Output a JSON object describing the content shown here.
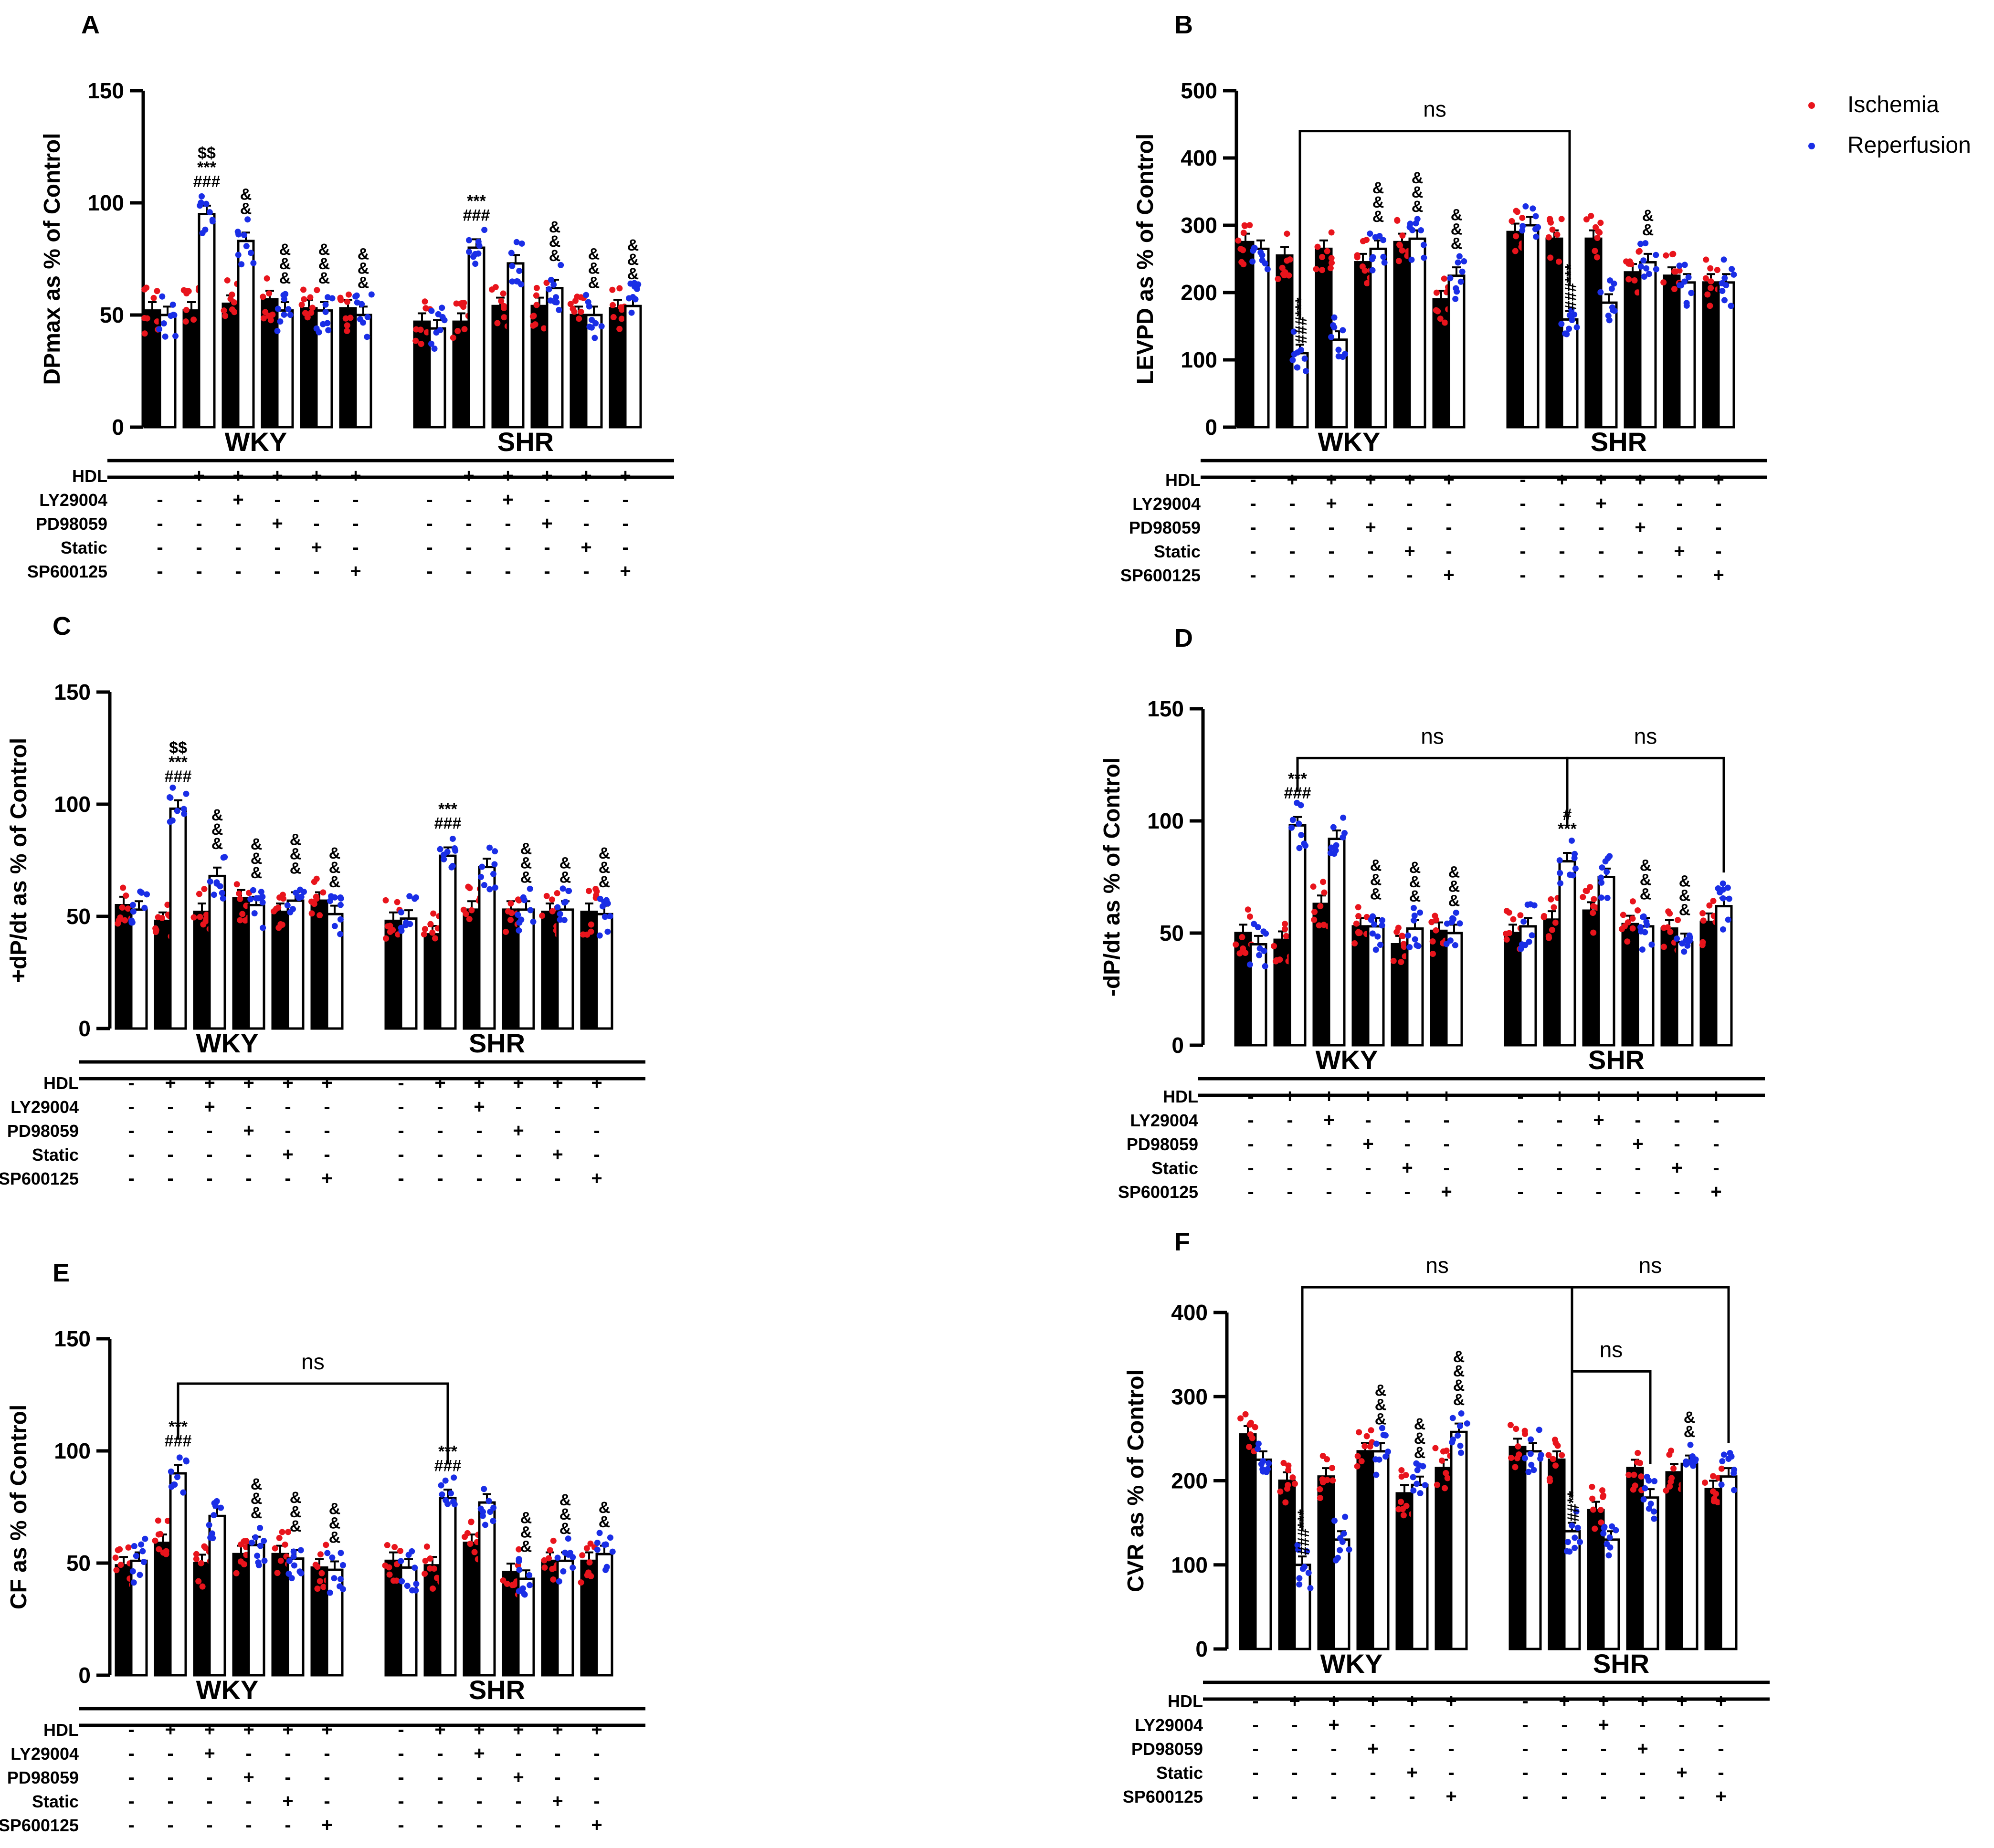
{
  "legend": [
    {
      "label": "Ischemia",
      "color": "#e8141c"
    },
    {
      "label": "Reperfusion",
      "color": "#1a2ee6"
    }
  ],
  "colors": {
    "ischemia_bar": "#000000",
    "reperfusion_bar": "#ffffff",
    "ischemia_dot": "#e8141c",
    "reperfusion_dot": "#1a2ee6"
  },
  "conditions": {
    "labels": [
      "HDL",
      "LY29004",
      "PD98059",
      "Static",
      "SP600125"
    ],
    "WKY": [
      [
        "-",
        "+",
        "+",
        "+",
        "+",
        "+"
      ],
      [
        "-",
        "-",
        "+",
        "-",
        "-",
        "-"
      ],
      [
        "-",
        "-",
        "-",
        "+",
        "-",
        "-"
      ],
      [
        "-",
        "-",
        "-",
        "-",
        "+",
        "-"
      ],
      [
        "-",
        "-",
        "-",
        "-",
        "-",
        "+"
      ]
    ],
    "SHR": [
      [
        "-",
        "+",
        "+",
        "+",
        "+",
        "+"
      ],
      [
        "-",
        "-",
        "+",
        "-",
        "-",
        "-"
      ],
      [
        "-",
        "-",
        "-",
        "+",
        "-",
        "-"
      ],
      [
        "-",
        "-",
        "-",
        "-",
        "+",
        "-"
      ],
      [
        "-",
        "-",
        "-",
        "-",
        "-",
        "+"
      ]
    ]
  },
  "chart_data": [
    {
      "panel": "A",
      "type": "bar",
      "ylabel": "DPmax as % of Control",
      "ylim": [
        0,
        150
      ],
      "yticks": [
        0,
        50,
        100,
        150
      ],
      "groups": [
        "WKY",
        "SHR"
      ],
      "series": [
        {
          "name": "Ischemia",
          "WKY": [
            52,
            52,
            55,
            57,
            53,
            53
          ],
          "SHR": [
            47,
            47,
            54,
            54,
            50,
            53
          ]
        },
        {
          "name": "Reperfusion",
          "WKY": [
            50,
            95,
            83,
            52,
            52,
            50
          ],
          "SHR": [
            44,
            80,
            73,
            62,
            50,
            54
          ]
        }
      ],
      "annotations": [
        {
          "group": "WKY",
          "index": 1,
          "series": "Reperfusion",
          "lines": [
            "$$",
            "***",
            "###"
          ]
        },
        {
          "group": "WKY",
          "index": 2,
          "series": "Reperfusion",
          "lines": [
            "&",
            "&"
          ]
        },
        {
          "group": "WKY",
          "index": 3,
          "series": "Reperfusion",
          "lines": [
            "&",
            "&",
            "&"
          ]
        },
        {
          "group": "WKY",
          "index": 4,
          "series": "Reperfusion",
          "lines": [
            "&",
            "&",
            "&"
          ]
        },
        {
          "group": "WKY",
          "index": 5,
          "series": "Reperfusion",
          "lines": [
            "&",
            "&",
            "&"
          ]
        },
        {
          "group": "SHR",
          "index": 1,
          "series": "Reperfusion",
          "lines": [
            "***",
            "###"
          ]
        },
        {
          "group": "SHR",
          "index": 3,
          "series": "Reperfusion",
          "lines": [
            "&",
            "&",
            "&"
          ]
        },
        {
          "group": "SHR",
          "index": 4,
          "series": "Reperfusion",
          "lines": [
            "&",
            "&",
            "&"
          ]
        },
        {
          "group": "SHR",
          "index": 5,
          "series": "Reperfusion",
          "lines": [
            "&",
            "&",
            "&"
          ]
        }
      ],
      "brackets": []
    },
    {
      "panel": "B",
      "type": "bar",
      "ylabel": "LEVPD as % of Control",
      "ylim": [
        0,
        500
      ],
      "yticks": [
        0,
        100,
        200,
        300,
        400,
        500
      ],
      "groups": [
        "WKY",
        "SHR"
      ],
      "series": [
        {
          "name": "Ischemia",
          "WKY": [
            275,
            255,
            265,
            245,
            275,
            190
          ],
          "SHR": [
            290,
            280,
            280,
            230,
            225,
            215
          ]
        },
        {
          "name": "Reperfusion",
          "WKY": [
            265,
            110,
            130,
            265,
            280,
            225
          ],
          "SHR": [
            300,
            160,
            185,
            245,
            215,
            215
          ]
        }
      ],
      "annotations": [
        {
          "group": "WKY",
          "index": 1,
          "series": "Reperfusion",
          "vertical": "###***"
        },
        {
          "group": "WKY",
          "index": 3,
          "series": "Reperfusion",
          "lines": [
            "&",
            "&",
            "&"
          ]
        },
        {
          "group": "WKY",
          "index": 4,
          "series": "Reperfusion",
          "lines": [
            "&",
            "&",
            "&"
          ]
        },
        {
          "group": "WKY",
          "index": 5,
          "series": "Reperfusion",
          "lines": [
            "&",
            "&",
            "&"
          ]
        },
        {
          "group": "SHR",
          "index": 1,
          "series": "Reperfusion",
          "vertical": "###***"
        },
        {
          "group": "SHR",
          "index": 3,
          "series": "Reperfusion",
          "lines": [
            "&",
            "&"
          ]
        }
      ],
      "brackets": [
        {
          "label": "ns",
          "from": {
            "group": "WKY",
            "index": 1
          },
          "to": {
            "group": "SHR",
            "index": 1
          },
          "level": 440
        }
      ]
    },
    {
      "panel": "C",
      "type": "bar",
      "ylabel": "+dP/dt as % of Control",
      "ylim": [
        0,
        150
      ],
      "yticks": [
        0,
        50,
        100,
        150
      ],
      "groups": [
        "WKY",
        "SHR"
      ],
      "series": [
        {
          "name": "Ischemia",
          "WKY": [
            55,
            48,
            52,
            58,
            52,
            57
          ],
          "SHR": [
            48,
            42,
            53,
            53,
            52,
            52
          ]
        },
        {
          "name": "Reperfusion",
          "WKY": [
            53,
            98,
            68,
            55,
            57,
            51
          ],
          "SHR": [
            49,
            77,
            72,
            53,
            53,
            51
          ]
        }
      ],
      "annotations": [
        {
          "group": "WKY",
          "index": 1,
          "series": "Reperfusion",
          "lines": [
            "$$",
            "***",
            "###"
          ]
        },
        {
          "group": "WKY",
          "index": 2,
          "series": "Reperfusion",
          "lines": [
            "&",
            "&",
            "&"
          ]
        },
        {
          "group": "WKY",
          "index": 3,
          "series": "Reperfusion",
          "lines": [
            "&",
            "&",
            "&"
          ]
        },
        {
          "group": "WKY",
          "index": 4,
          "series": "Reperfusion",
          "lines": [
            "&",
            "&",
            "&"
          ]
        },
        {
          "group": "WKY",
          "index": 5,
          "series": "Reperfusion",
          "lines": [
            "&",
            "&",
            "&"
          ]
        },
        {
          "group": "SHR",
          "index": 1,
          "series": "Reperfusion",
          "lines": [
            "***",
            "###"
          ]
        },
        {
          "group": "SHR",
          "index": 3,
          "series": "Reperfusion",
          "lines": [
            "&",
            "&",
            "&"
          ]
        },
        {
          "group": "SHR",
          "index": 4,
          "series": "Reperfusion",
          "lines": [
            "&",
            "&"
          ]
        },
        {
          "group": "SHR",
          "index": 5,
          "series": "Reperfusion",
          "lines": [
            "&",
            "&",
            "&"
          ]
        }
      ],
      "brackets": []
    },
    {
      "panel": "D",
      "type": "bar",
      "ylabel": "-dP/dt as % of Control",
      "ylim": [
        0,
        150
      ],
      "yticks": [
        0,
        50,
        100,
        150
      ],
      "groups": [
        "WKY",
        "SHR"
      ],
      "series": [
        {
          "name": "Ischemia",
          "WKY": [
            50,
            47,
            63,
            53,
            45,
            51
          ],
          "SHR": [
            50,
            56,
            60,
            54,
            52,
            55
          ]
        },
        {
          "name": "Reperfusion",
          "WKY": [
            45,
            98,
            92,
            53,
            52,
            50
          ],
          "SHR": [
            53,
            82,
            75,
            53,
            46,
            62
          ]
        }
      ],
      "annotations": [
        {
          "group": "WKY",
          "index": 1,
          "series": "Reperfusion",
          "lines": [
            "***",
            "###"
          ]
        },
        {
          "group": "WKY",
          "index": 3,
          "series": "Reperfusion",
          "lines": [
            "&",
            "&",
            "&"
          ]
        },
        {
          "group": "WKY",
          "index": 4,
          "series": "Reperfusion",
          "lines": [
            "&",
            "&",
            "&"
          ]
        },
        {
          "group": "WKY",
          "index": 5,
          "series": "Reperfusion",
          "lines": [
            "&",
            "&",
            "&"
          ]
        },
        {
          "group": "SHR",
          "index": 1,
          "series": "Reperfusion",
          "lines": [
            "#",
            "***"
          ]
        },
        {
          "group": "SHR",
          "index": 3,
          "series": "Reperfusion",
          "lines": [
            "&",
            "&",
            "&"
          ]
        },
        {
          "group": "SHR",
          "index": 4,
          "series": "Reperfusion",
          "lines": [
            "&",
            "&",
            "&"
          ]
        }
      ],
      "brackets": [
        {
          "label": "ns",
          "from": {
            "group": "WKY",
            "index": 1
          },
          "to": {
            "group": "SHR",
            "index": 1
          },
          "level": 128
        },
        {
          "label": "ns",
          "from": {
            "group": "SHR",
            "index": 1
          },
          "to": {
            "group": "SHR",
            "index": 5
          },
          "level": 128
        }
      ]
    },
    {
      "panel": "E",
      "type": "bar",
      "ylabel": "CF as % of Control",
      "ylim": [
        0,
        150
      ],
      "yticks": [
        0,
        50,
        100,
        150
      ],
      "groups": [
        "WKY",
        "SHR"
      ],
      "series": [
        {
          "name": "Ischemia",
          "WKY": [
            49,
            59,
            50,
            54,
            54,
            48
          ],
          "SHR": [
            51,
            49,
            59,
            46,
            51,
            51
          ]
        },
        {
          "name": "Reperfusion",
          "WKY": [
            51,
            90,
            71,
            58,
            52,
            47
          ],
          "SHR": [
            48,
            79,
            77,
            43,
            51,
            54
          ]
        }
      ],
      "annotations": [
        {
          "group": "WKY",
          "index": 1,
          "series": "Reperfusion",
          "lines": [
            "***",
            "###"
          ]
        },
        {
          "group": "WKY",
          "index": 3,
          "series": "Reperfusion",
          "lines": [
            "&",
            "&",
            "&"
          ]
        },
        {
          "group": "WKY",
          "index": 4,
          "series": "Reperfusion",
          "lines": [
            "&",
            "&",
            "&"
          ]
        },
        {
          "group": "WKY",
          "index": 5,
          "series": "Reperfusion",
          "lines": [
            "&",
            "&",
            "&"
          ]
        },
        {
          "group": "SHR",
          "index": 1,
          "series": "Reperfusion",
          "lines": [
            "***",
            "###"
          ]
        },
        {
          "group": "SHR",
          "index": 3,
          "series": "Reperfusion",
          "lines": [
            "&",
            "&",
            "&"
          ]
        },
        {
          "group": "SHR",
          "index": 4,
          "series": "Reperfusion",
          "lines": [
            "&",
            "&",
            "&"
          ]
        },
        {
          "group": "SHR",
          "index": 5,
          "series": "Reperfusion",
          "lines": [
            "&",
            "&"
          ]
        }
      ],
      "brackets": [
        {
          "label": "ns",
          "from": {
            "group": "WKY",
            "index": 1
          },
          "to": {
            "group": "SHR",
            "index": 1
          },
          "level": 130
        }
      ]
    },
    {
      "panel": "F",
      "type": "bar",
      "ylabel": "CVR as % of Control",
      "ylim": [
        0,
        400
      ],
      "yticks": [
        0,
        100,
        200,
        300,
        400
      ],
      "groups": [
        "WKY",
        "SHR"
      ],
      "series": [
        {
          "name": "Ischemia",
          "WKY": [
            255,
            200,
            205,
            235,
            185,
            215
          ],
          "SHR": [
            240,
            225,
            165,
            215,
            210,
            190
          ]
        },
        {
          "name": "Reperfusion",
          "WKY": [
            225,
            100,
            130,
            235,
            195,
            258
          ],
          "SHR": [
            235,
            140,
            130,
            180,
            220,
            205
          ]
        }
      ],
      "annotations": [
        {
          "group": "WKY",
          "index": 1,
          "series": "Reperfusion",
          "vertical": "###***"
        },
        {
          "group": "WKY",
          "index": 3,
          "series": "Reperfusion",
          "lines": [
            "&",
            "&",
            "&"
          ]
        },
        {
          "group": "WKY",
          "index": 4,
          "series": "Reperfusion",
          "lines": [
            "&",
            "&",
            "&"
          ]
        },
        {
          "group": "WKY",
          "index": 5,
          "series": "Reperfusion",
          "lines": [
            "&",
            "&",
            "&",
            "&"
          ]
        },
        {
          "group": "SHR",
          "index": 1,
          "series": "Reperfusion",
          "vertical": "##**"
        },
        {
          "group": "SHR",
          "index": 4,
          "series": "Reperfusion",
          "lines": [
            "&",
            "&"
          ]
        }
      ],
      "brackets": [
        {
          "label": "ns",
          "from": {
            "group": "WKY",
            "index": 1
          },
          "to": {
            "group": "SHR",
            "index": 1
          },
          "level": 430
        },
        {
          "label": "ns",
          "from": {
            "group": "SHR",
            "index": 1
          },
          "to": {
            "group": "SHR",
            "index": 5
          },
          "level": 430
        },
        {
          "label": "ns",
          "from": {
            "group": "SHR",
            "index": 1
          },
          "to": {
            "group": "SHR",
            "index": 3
          },
          "level": 330
        }
      ]
    }
  ]
}
